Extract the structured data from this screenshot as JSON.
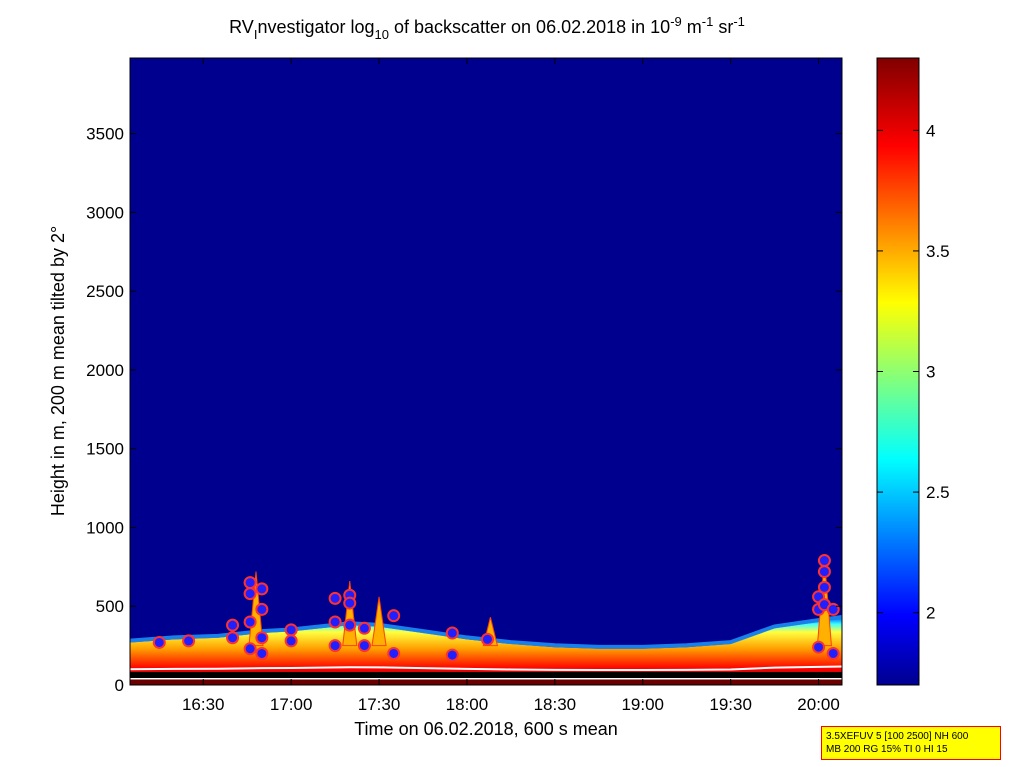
{
  "chart_data": {
    "type": "heatmap",
    "title": {
      "parts": [
        {
          "t": "RV",
          "s": "n"
        },
        {
          "t": "I",
          "s": "sub"
        },
        {
          "t": "nvestigator log",
          "s": "n"
        },
        {
          "t": "10",
          "s": "sub"
        },
        {
          "t": " of backscatter on 06.02.2018 in 10",
          "s": "n"
        },
        {
          "t": "-9",
          "s": "sup"
        },
        {
          "t": " m",
          "s": "n"
        },
        {
          "t": "-1",
          "s": "sup"
        },
        {
          "t": " sr",
          "s": "n"
        },
        {
          "t": "-1",
          "s": "sup"
        }
      ]
    },
    "xlabel": "Time on 06.02.2018, 600 s mean",
    "ylabel": "Height in m, 200 m mean tilted by 2°",
    "x_range": [
      "16:05",
      "20:08"
    ],
    "y_range": [
      0,
      3980
    ],
    "x_ticks": [
      "16:30",
      "17:00",
      "17:30",
      "18:00",
      "18:30",
      "19:00",
      "19:30",
      "20:00"
    ],
    "y_ticks": [
      0,
      500,
      1000,
      1500,
      2000,
      2500,
      3000,
      3500
    ],
    "colorbar": {
      "range": [
        1.7,
        4.3
      ],
      "ticks": [
        "2",
        "2.5",
        "3",
        "3.5",
        "4"
      ],
      "colormap": "jet"
    },
    "background_value": 1.72,
    "layer_profile": {
      "time": [
        "16:05",
        "16:20",
        "16:35",
        "16:50",
        "17:00",
        "17:10",
        "17:20",
        "17:30",
        "17:45",
        "18:00",
        "18:15",
        "18:30",
        "18:45",
        "19:00",
        "19:15",
        "19:30",
        "19:45",
        "20:00",
        "20:08"
      ],
      "top_height_m": [
        270,
        290,
        300,
        330,
        340,
        360,
        380,
        370,
        330,
        290,
        260,
        240,
        230,
        230,
        240,
        260,
        360,
        400,
        420
      ]
    },
    "spikes": [
      {
        "time": "16:48",
        "top_m": 720
      },
      {
        "time": "17:20",
        "top_m": 660
      },
      {
        "time": "17:30",
        "top_m": 560
      },
      {
        "time": "18:08",
        "top_m": 430
      },
      {
        "time": "20:02",
        "top_m": 800
      }
    ],
    "cloud_markers_m": [
      {
        "time": "16:15",
        "heights": [
          270
        ]
      },
      {
        "time": "16:25",
        "heights": [
          280
        ]
      },
      {
        "time": "16:40",
        "heights": [
          300,
          380
        ]
      },
      {
        "time": "16:46",
        "heights": [
          650,
          580,
          400,
          230
        ]
      },
      {
        "time": "16:50",
        "heights": [
          610,
          480,
          300,
          200
        ]
      },
      {
        "time": "17:00",
        "heights": [
          350,
          280
        ]
      },
      {
        "time": "17:15",
        "heights": [
          550,
          400,
          250
        ]
      },
      {
        "time": "17:20",
        "heights": [
          570,
          520,
          380
        ]
      },
      {
        "time": "17:25",
        "heights": [
          360,
          250
        ]
      },
      {
        "time": "17:35",
        "heights": [
          440,
          200
        ]
      },
      {
        "time": "17:55",
        "heights": [
          330,
          190
        ]
      },
      {
        "time": "18:07",
        "heights": [
          290
        ]
      },
      {
        "time": "20:00",
        "heights": [
          560,
          480,
          240
        ]
      },
      {
        "time": "20:02",
        "heights": [
          790,
          720,
          620,
          510
        ]
      },
      {
        "time": "20:05",
        "heights": [
          480,
          200
        ]
      }
    ]
  },
  "infobox": {
    "line1": "3.5XEFUV 5 [100 2500] NH 600",
    "line2": "MB 200 RG 15% TI 0 HI 15"
  },
  "colors": {
    "marker_fill": "#2020ff",
    "marker_edge": "#ff3030",
    "ground_line": "#000000",
    "mixing_line": "#ffffff",
    "infobox_bg": "#ffff00",
    "infobox_border": "#ff0000"
  }
}
